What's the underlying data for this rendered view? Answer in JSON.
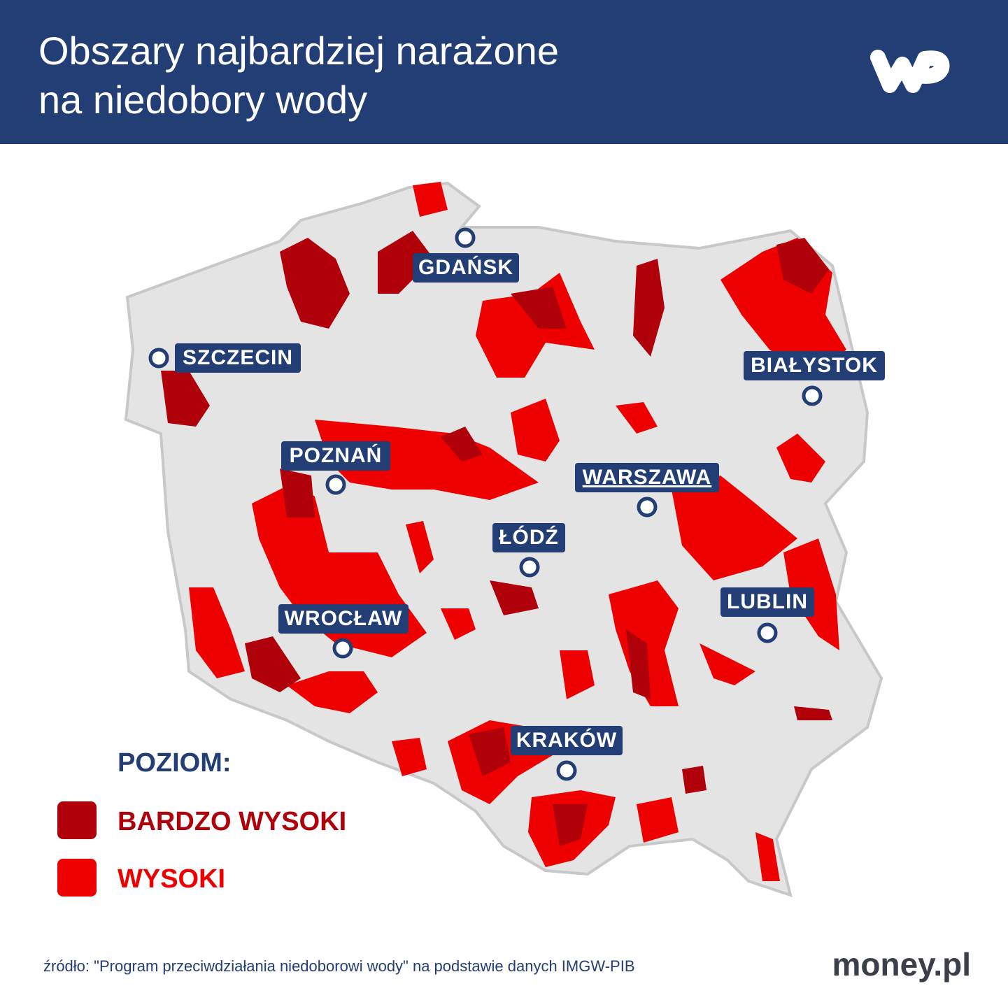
{
  "header": {
    "title_lines": [
      "Obszary najbardziej narażone",
      "na niedobory wody"
    ]
  },
  "cities": [
    "GDAŃSK",
    "SZCZECIN",
    "BIAŁYSTOK",
    "POZNAŃ",
    "WARSZAWA",
    "ŁÓDŹ",
    "LUBLIN",
    "WROCŁAW",
    "KRAKÓW"
  ],
  "legend": {
    "title": "POZIOM:",
    "items": [
      "BARDZO WYSOKI",
      "WYSOKI"
    ]
  },
  "source": "źródło: \"Program przeciwdziałania niedoborowi wody\" na podstawie danych IMGW-PIB",
  "brand": "money.pl"
}
